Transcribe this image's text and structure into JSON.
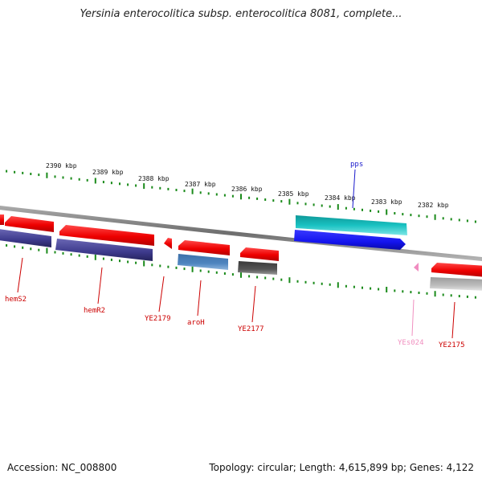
{
  "title": "Yersinia enterocolitica subsp. enterocolitica 8081, complete...",
  "footer": {
    "accession": "Accession: NC_008800",
    "summary": "Topology: circular; Length: 4,615,899 bp; Genes: 4,122"
  },
  "scale_labels": [
    "2390 kbp",
    "2389 kbp",
    "2388 kbp",
    "2387 kbp",
    "2386 kbp",
    "2385 kbp",
    "2384 kbp",
    "2383 kbp",
    "2382 kbp"
  ],
  "colors": {
    "tick": "#1a8a1a",
    "backbone": "#7a7a7a",
    "gene_red": "#ee0000",
    "gene_navy": "#3d3a8c",
    "gene_steel": "#4f86c0",
    "gene_dark": "#555555",
    "gene_cyan": "#19c2c2",
    "gene_blue": "#1414ee",
    "gene_pink": "#f08cc0",
    "gene_grey": "#bdbdbd",
    "label_red": "#cc0000",
    "label_blue": "#1a1acc",
    "label_pink": "#f090c0"
  },
  "genes": [
    {
      "name": "hemS2",
      "color": "gene_red"
    },
    {
      "name": "hemR2",
      "color": "gene_red"
    },
    {
      "name": "YE2179",
      "color": "gene_red"
    },
    {
      "name": "aroH",
      "color": "gene_steel"
    },
    {
      "name": "YE2177",
      "color": "gene_dark"
    },
    {
      "name": "pps",
      "color": "gene_blue"
    },
    {
      "name": "YEs024",
      "color": "gene_pink"
    },
    {
      "name": "YE2175",
      "color": "gene_red"
    }
  ]
}
